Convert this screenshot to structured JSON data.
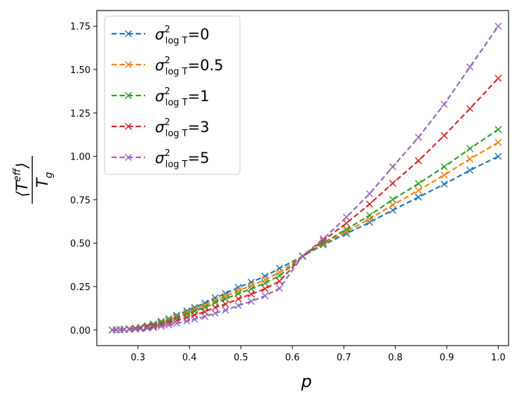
{
  "chart_data": {
    "type": "line",
    "title": "",
    "xlabel": "p",
    "ylabel": {
      "numerator": "⟨T",
      "numerator_sup": "eff",
      "numerator_close": "⟩",
      "denominator": "T",
      "denominator_sub": "g"
    },
    "xlim": [
      0.22,
      1.02
    ],
    "ylim": [
      -0.09,
      1.84
    ],
    "x_ticks": [
      0.3,
      0.4,
      0.5,
      0.6,
      0.7,
      0.8,
      0.9,
      1.0
    ],
    "x_tick_labels": [
      "0.3",
      "0.4",
      "0.5",
      "0.6",
      "0.7",
      "0.8",
      "0.9",
      "1.0"
    ],
    "y_ticks": [
      0.0,
      0.25,
      0.5,
      0.75,
      1.0,
      1.25,
      1.5,
      1.75
    ],
    "y_tick_labels": [
      "0.00",
      "0.25",
      "0.50",
      "0.75",
      "1.00",
      "1.25",
      "1.50",
      "1.75"
    ],
    "grid": false,
    "legend_position": "top-left",
    "x": [
      0.25,
      0.258,
      0.265,
      0.273,
      0.283,
      0.295,
      0.305,
      0.318,
      0.33,
      0.345,
      0.36,
      0.375,
      0.395,
      0.41,
      0.43,
      0.45,
      0.47,
      0.495,
      0.52,
      0.547,
      0.575,
      0.62,
      0.66,
      0.705,
      0.75,
      0.795,
      0.845,
      0.895,
      0.945,
      1.0
    ],
    "series": [
      {
        "name": "σ²logT=0",
        "legend": {
          "sigma": "σ",
          "sup": "2",
          "sub": "log T",
          "value": "=0"
        },
        "color": "#1f77b4",
        "values": [
          0.0,
          0.001,
          0.002,
          0.004,
          0.007,
          0.011,
          0.016,
          0.025,
          0.035,
          0.05,
          0.065,
          0.085,
          0.11,
          0.13,
          0.155,
          0.185,
          0.21,
          0.245,
          0.275,
          0.31,
          0.355,
          0.425,
          0.49,
          0.555,
          0.62,
          0.69,
          0.765,
          0.84,
          0.92,
          1.0
        ]
      },
      {
        "name": "σ²logT=0.5",
        "legend": {
          "sigma": "σ",
          "sup": "2",
          "sub": "log T",
          "value": "=0.5"
        },
        "color": "#ff7f0e",
        "values": [
          0.0,
          0.0009,
          0.0018,
          0.0036,
          0.0063,
          0.01,
          0.0145,
          0.0227,
          0.0318,
          0.0455,
          0.059,
          0.0775,
          0.1005,
          0.119,
          0.142,
          0.17,
          0.194,
          0.227,
          0.2555,
          0.289,
          0.3325,
          0.4245,
          0.4955,
          0.5675,
          0.64,
          0.7205,
          0.8045,
          0.8925,
          0.985,
          1.08
        ]
      },
      {
        "name": "σ²logT=1",
        "legend": {
          "sigma": "σ",
          "sup": "2",
          "sub": "log T",
          "value": "=1"
        },
        "color": "#2ca02c",
        "values": [
          0.0,
          0.0008,
          0.0016,
          0.0032,
          0.0056,
          0.009,
          0.013,
          0.0205,
          0.0288,
          0.0413,
          0.0535,
          0.0705,
          0.0915,
          0.1085,
          0.13,
          0.157,
          0.179,
          0.21,
          0.237,
          0.27,
          0.313,
          0.424,
          0.501,
          0.58,
          0.66,
          0.751,
          0.843,
          0.94,
          1.045,
          1.155
        ]
      },
      {
        "name": "σ²logT=3",
        "legend": {
          "sigma": "σ",
          "sup": "2",
          "sub": "log T",
          "value": "=3"
        },
        "color": "#d62728",
        "values": [
          0.0,
          0.0006,
          0.0012,
          0.0024,
          0.0042,
          0.0068,
          0.0098,
          0.0156,
          0.022,
          0.0318,
          0.0415,
          0.0555,
          0.0725,
          0.0868,
          0.1055,
          0.1295,
          0.149,
          0.1795,
          0.2065,
          0.2375,
          0.281,
          0.425,
          0.515,
          0.615,
          0.725,
          0.845,
          0.975,
          1.12,
          1.275,
          1.45
        ]
      },
      {
        "name": "σ²logT=5",
        "legend": {
          "sigma": "σ",
          "sup": "2",
          "sub": "log T",
          "value": "=5"
        },
        "color": "#9467bd",
        "values": [
          0.0,
          0.0004,
          0.0008,
          0.0016,
          0.0028,
          0.0045,
          0.0065,
          0.0104,
          0.0147,
          0.0213,
          0.0285,
          0.0385,
          0.051,
          0.062,
          0.077,
          0.097,
          0.114,
          0.1405,
          0.165,
          0.197,
          0.24,
          0.427,
          0.525,
          0.65,
          0.785,
          0.94,
          1.11,
          1.3,
          1.515,
          1.75
        ]
      }
    ]
  }
}
